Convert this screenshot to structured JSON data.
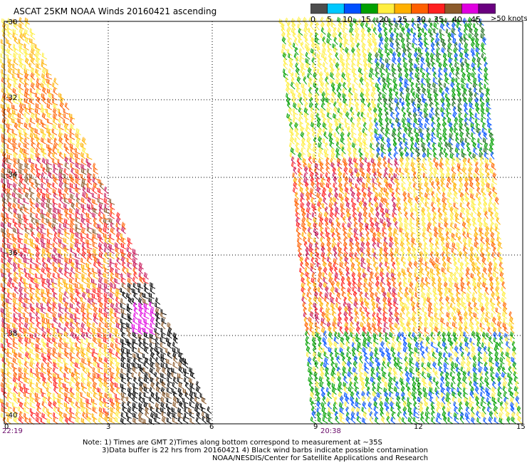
{
  "title": "ASCAT 25KM NOAA Winds 20160421 ascending",
  "legend": {
    "colors": [
      "#4d4d4d",
      "#00c8ff",
      "#0050ff",
      "#00a000",
      "#ffee40",
      "#ffb000",
      "#ff6000",
      "#ff2020",
      "#8b5a2b",
      "#e000e0",
      "#6a0080"
    ],
    "labels": [
      "0",
      "5",
      "10",
      "15",
      "20",
      "25",
      "30",
      "35",
      "40",
      "45"
    ],
    "unit": ">50 knots"
  },
  "lat_labels": [
    "-30",
    "-32",
    "-34",
    "-36",
    "-38",
    "-40"
  ],
  "lon_labels": [
    "0",
    "3",
    "6",
    "9",
    "12",
    "15"
  ],
  "pass_times": [
    "22:19",
    "20:38"
  ],
  "notes": [
    "Note: 1) Times are GMT 2)Times along bottom correspond to measurement at ~35S",
    "3)Data buffer is 22 hrs from 20160421 4) Black wind barbs indicate possible contamination",
    "NOAA/NESDIS/Center for Satellite Applications and Research"
  ],
  "icons": [
    "wind-barb-icon"
  ]
}
